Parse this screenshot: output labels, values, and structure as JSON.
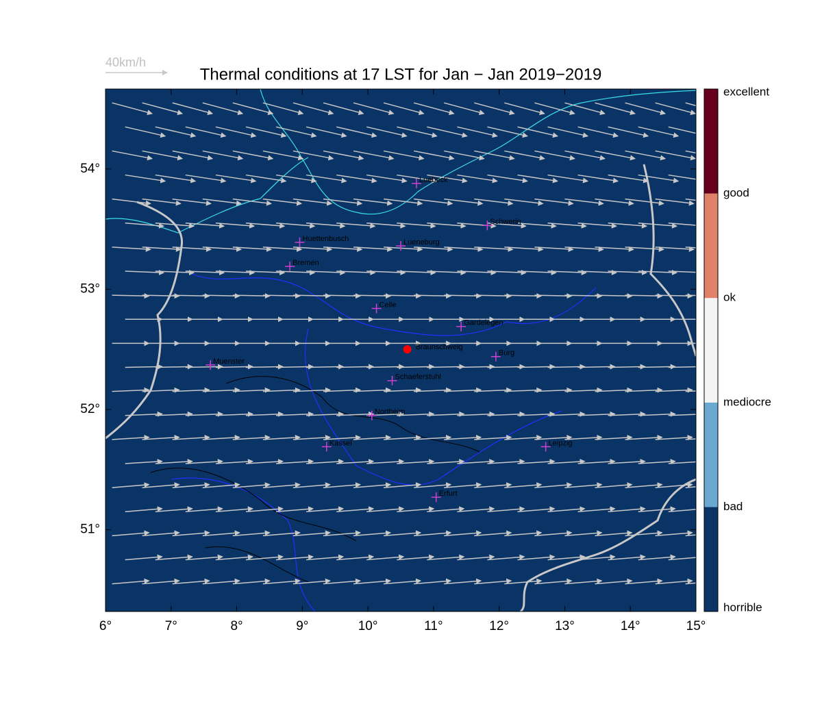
{
  "chart_data": {
    "type": "map",
    "title": "Thermal conditions at 17 LST for Jan − Jan  2019−2019",
    "wind_scale": {
      "label": "40km/h",
      "speed": 40
    },
    "background": "#0b3466",
    "xlim": [
      6,
      15
    ],
    "ylim": [
      50.32,
      54.665
    ],
    "xticks": [
      {
        "value": 6,
        "label": "6°"
      },
      {
        "value": 7,
        "label": "7°"
      },
      {
        "value": 8,
        "label": "8°"
      },
      {
        "value": 9,
        "label": "9°"
      },
      {
        "value": 10,
        "label": "10°"
      },
      {
        "value": 11,
        "label": "11°"
      },
      {
        "value": 12,
        "label": "12°"
      },
      {
        "value": 13,
        "label": "13°"
      },
      {
        "value": 14,
        "label": "14°"
      },
      {
        "value": 15,
        "label": "15°"
      }
    ],
    "yticks": [
      {
        "value": 51,
        "label": "51°"
      },
      {
        "value": 52,
        "label": "52°"
      },
      {
        "value": 53,
        "label": "53°"
      },
      {
        "value": 54,
        "label": "54°"
      }
    ],
    "colorbar": {
      "labels": [
        "horrible",
        "bad",
        "mediocre",
        "ok",
        "good",
        "excellent"
      ],
      "colors": [
        "#0b3466",
        "#6aa9d0",
        "#f4f4f4",
        "#e0826a",
        "#67001f"
      ]
    },
    "cities": [
      {
        "name": "Luebeck",
        "lon": 10.74,
        "lat": 53.88
      },
      {
        "name": "Schwerin",
        "lon": 11.82,
        "lat": 53.53
      },
      {
        "name": "Huettenbusch",
        "lon": 8.96,
        "lat": 53.39
      },
      {
        "name": "Lueneburg",
        "lon": 10.5,
        "lat": 53.36
      },
      {
        "name": "Bremen",
        "lon": 8.81,
        "lat": 53.19
      },
      {
        "name": "Celle",
        "lon": 10.13,
        "lat": 52.84
      },
      {
        "name": "Gardelegen",
        "lon": 11.42,
        "lat": 52.69
      },
      {
        "name": "Burg",
        "lon": 11.95,
        "lat": 52.44
      },
      {
        "name": "Muenster",
        "lon": 7.6,
        "lat": 52.37
      },
      {
        "name": "Schaeferstuhl",
        "lon": 10.37,
        "lat": 52.24
      },
      {
        "name": "Northeim",
        "lon": 10.06,
        "lat": 51.95
      },
      {
        "name": "Kassel",
        "lon": 9.37,
        "lat": 51.69
      },
      {
        "name": "Leipzig",
        "lon": 12.71,
        "lat": 51.69
      },
      {
        "name": "Erfurt",
        "lon": 11.04,
        "lat": 51.27
      }
    ],
    "site": {
      "name": "Braunschweig",
      "lon": 10.6,
      "lat": 52.5
    },
    "wind": [
      {
        "lat": 54.55,
        "u": 26,
        "v": -7
      },
      {
        "lat": 54.35,
        "u": 26,
        "v": -6
      },
      {
        "lat": 54.15,
        "u": 26,
        "v": -5
      },
      {
        "lat": 53.95,
        "u": 26,
        "v": -4
      },
      {
        "lat": 53.75,
        "u": 25,
        "v": -3
      },
      {
        "lat": 53.55,
        "u": 25,
        "v": -2
      },
      {
        "lat": 53.35,
        "u": 25,
        "v": -1.5
      },
      {
        "lat": 53.15,
        "u": 25,
        "v": -1
      },
      {
        "lat": 52.95,
        "u": 24,
        "v": -0.5
      },
      {
        "lat": 52.75,
        "u": 24,
        "v": 0
      },
      {
        "lat": 52.55,
        "u": 24,
        "v": 0
      },
      {
        "lat": 52.35,
        "u": 24,
        "v": 0.5
      },
      {
        "lat": 52.15,
        "u": 24,
        "v": 1
      },
      {
        "lat": 51.95,
        "u": 24,
        "v": 1
      },
      {
        "lat": 51.75,
        "u": 24,
        "v": 1.5
      },
      {
        "lat": 51.55,
        "u": 24,
        "v": 1.5
      },
      {
        "lat": 51.35,
        "u": 24,
        "v": 2
      },
      {
        "lat": 51.15,
        "u": 24,
        "v": 2
      },
      {
        "lat": 50.95,
        "u": 24,
        "v": 2
      },
      {
        "lat": 50.75,
        "u": 24,
        "v": 2
      },
      {
        "lat": 50.55,
        "u": 24,
        "v": 2
      }
    ]
  }
}
